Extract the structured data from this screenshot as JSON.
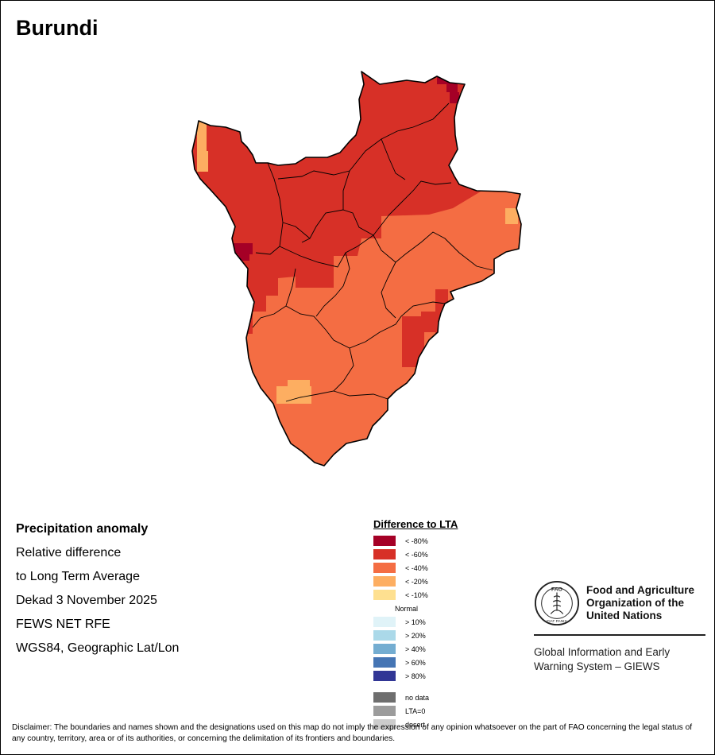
{
  "title": "Burundi",
  "info": {
    "line1": "Precipitation anomaly",
    "line2": "Relative difference",
    "line3": "to Long Term Average",
    "line4": "Dekad 3 November 2025",
    "line5": "FEWS NET RFE",
    "line6": "WGS84, Geographic Lat/Lon"
  },
  "legend": {
    "title": "Difference to LTA",
    "classes": [
      {
        "label": "< -80%",
        "color": "#a50026"
      },
      {
        "label": "< -60%",
        "color": "#d73027"
      },
      {
        "label": "< -40%",
        "color": "#f46d43"
      },
      {
        "label": "< -20%",
        "color": "#fdae61"
      },
      {
        "label": "< -10%",
        "color": "#fee090"
      },
      {
        "label": "Normal",
        "color": ""
      },
      {
        "label": "> 10%",
        "color": "#e0f3f8"
      },
      {
        "label": "> 20%",
        "color": "#abd9e9"
      },
      {
        "label": "> 40%",
        "color": "#74add1"
      },
      {
        "label": "> 60%",
        "color": "#4575b4"
      },
      {
        "label": "> 80%",
        "color": "#313695"
      }
    ],
    "extra": [
      {
        "label": "no data",
        "color": "#6e6e6e"
      },
      {
        "label": "LTA=0",
        "color": "#9c9c9c"
      },
      {
        "label": "desert",
        "color": "#cccccc"
      }
    ]
  },
  "fao": {
    "logo_text": "FAO",
    "logo_motto": "FIAT PANIS",
    "org_line1": "Food and Agriculture",
    "org_line2": "Organization of the",
    "org_line3": "United Nations",
    "giews_line1": "Global Information and Early",
    "giews_line2": "Warning System – GIEWS"
  },
  "disclaimer": "Disclaimer: The boundaries and names shown and the designations used on this map do not imply the expression of any opinion whatsoever on the part of FAO concerning the legal status of any country, territory, area or of its authorities, or concerning the delimitation of its frontiers and boundaries."
}
